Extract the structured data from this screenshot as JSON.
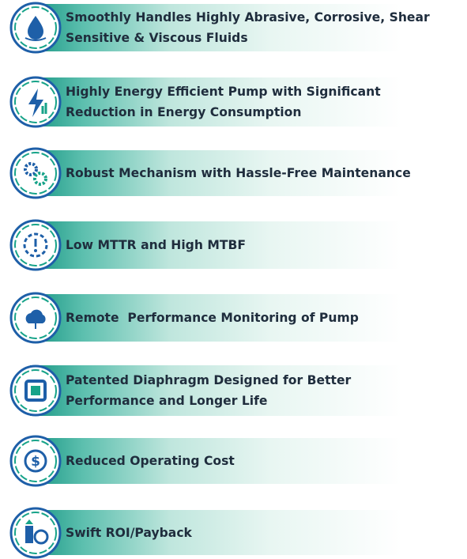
{
  "items": [
    {
      "lines": [
        "Smoothly Handles Highly Abrasive, Corrosive, Shear",
        "Sensitive & Viscous Fluids"
      ]
    },
    {
      "lines": [
        "Highly Energy Efficient Pump with Significant",
        "Reduction in Energy Consumption"
      ]
    },
    {
      "lines": [
        "Robust Mechanism with Hassle-Free Maintenance"
      ]
    },
    {
      "lines": [
        "Low MTTR and High MTBF"
      ]
    },
    {
      "lines": [
        "Remote  Performance Monitoring of Pump"
      ]
    },
    {
      "lines": [
        "Patented Diaphragm Designed for Better",
        "Performance and Longer Life"
      ]
    },
    {
      "lines": [
        "Reduced Operating Cost"
      ]
    },
    {
      "lines": [
        "Swift ROI/Payback"
      ]
    }
  ]
}
